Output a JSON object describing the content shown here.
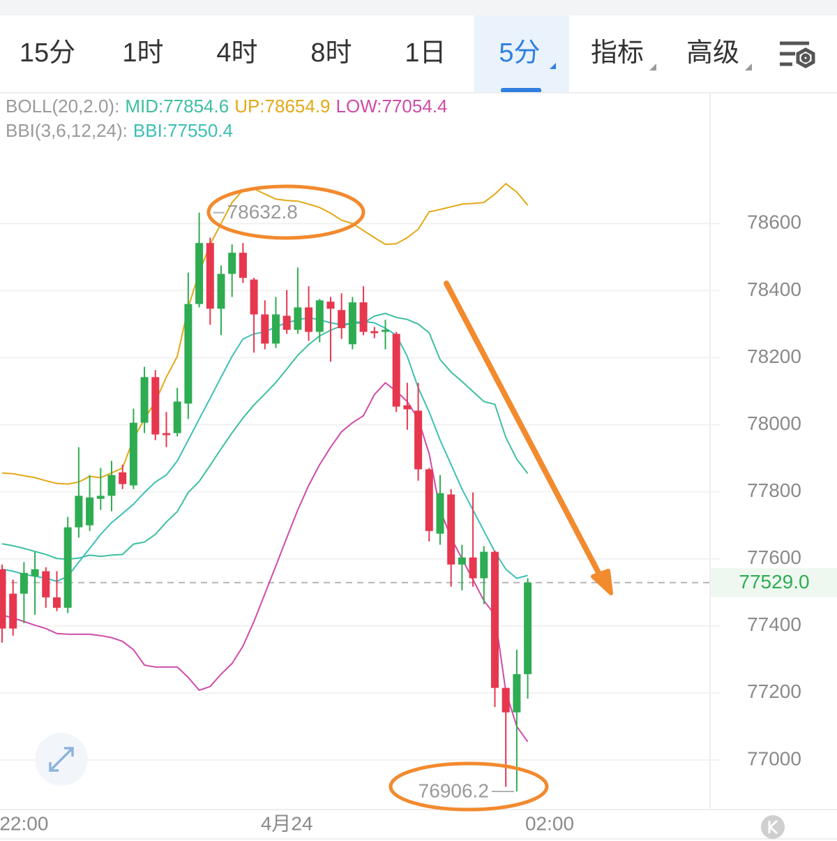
{
  "tabs": [
    "15分",
    "1时",
    "4时",
    "8时",
    "1日",
    "5分",
    "指标",
    "高级"
  ],
  "chart_data": {
    "type": "candlestick",
    "header": [
      [
        {
          "text": "BOLL(20,2.0):",
          "color": "#9a9a9a"
        },
        {
          "text": "MID:77854.6",
          "color": "#3cbf9f"
        },
        {
          "text": "UP:78654.9",
          "color": "#e3a816"
        },
        {
          "text": "LOW:77054.4",
          "color": "#d04aa8"
        }
      ],
      [
        {
          "text": "BBI(3,6,12,24):",
          "color": "#9a9a9a"
        },
        {
          "text": "BBI:77550.4",
          "color": "#3cbfb6"
        }
      ]
    ],
    "ylim": [
      76852,
      78990
    ],
    "yticks": [
      77000,
      77200,
      77400,
      77600,
      77800,
      78000,
      78200,
      78400,
      78600
    ],
    "xlim": [
      -0.19,
      64.65
    ],
    "xticks": [
      {
        "value": 2,
        "label": "22:00"
      },
      {
        "value": 26,
        "label": "4月24"
      },
      {
        "value": 50,
        "label": "02:00"
      }
    ],
    "grid": true,
    "candles": {
      "up_color": "#2eac52",
      "down_color": "#e6374e",
      "open": [
        77569,
        77496,
        77496,
        77548,
        77563,
        77485,
        77454,
        77694,
        77700,
        77779,
        77788,
        77858,
        77819,
        78006,
        78142,
        77975,
        77975,
        78063,
        78360,
        78542,
        78346,
        78450,
        78513,
        78433,
        78329,
        78242,
        78325,
        78283,
        78350,
        78277,
        78367,
        78342,
        78240,
        78365,
        78279,
        78277,
        78271,
        78058,
        78042,
        77867,
        77675,
        77792,
        77583,
        77604,
        77542,
        77621,
        77215,
        77142,
        77256
      ],
      "high": [
        77583,
        77538,
        77590,
        77621,
        77575,
        77563,
        77725,
        77933,
        77850,
        77871,
        77892,
        77881,
        78048,
        78173,
        78163,
        78038,
        78110,
        78454,
        78632.8,
        78558,
        78475,
        78538,
        78542,
        78438,
        78371,
        78381,
        78402,
        78469,
        78413,
        78375,
        78381,
        78392,
        78381,
        78413,
        78292,
        78313,
        78277,
        78125,
        78125,
        77871,
        77850,
        77808,
        77642,
        77798,
        77638,
        77625,
        77215,
        77329,
        77542
      ],
      "low": [
        77350,
        77371,
        77408,
        77433,
        77454,
        77444,
        77438,
        77663,
        77683,
        77746,
        77742,
        77808,
        77808,
        77975,
        77954,
        77933,
        77965,
        78017,
        78350,
        78298,
        78267,
        78381,
        78423,
        78215,
        78225,
        78229,
        78271,
        78271,
        78250,
        78246,
        78188,
        78256,
        78225,
        78267,
        78258,
        78225,
        78038,
        77985,
        77833,
        77652,
        77642,
        77517,
        77506,
        77517,
        77465,
        77158,
        76920,
        76906.2,
        77183
      ],
      "close": [
        77392,
        77392,
        77558,
        77569,
        77485,
        77454,
        77694,
        77788,
        77783,
        77788,
        77850,
        77823,
        78006,
        78142,
        77971,
        77969,
        78069,
        78360,
        78542,
        78346,
        78450,
        78513,
        78438,
        78329,
        78242,
        78329,
        78283,
        78350,
        78277,
        78371,
        78346,
        78288,
        78365,
        78277,
        78273,
        78283,
        78054,
        78046,
        77867,
        77683,
        77796,
        77583,
        77604,
        77542,
        77621,
        77215,
        77142,
        77256,
        77529
      ]
    },
    "indicators": [
      {
        "color": "#e3a816",
        "values": [
          77856,
          77854,
          77848,
          77842,
          77833,
          77825,
          77823,
          77829,
          77846,
          77842,
          77856,
          77871,
          77958,
          78017,
          78069,
          78142,
          78204,
          78350,
          78454,
          78538,
          78600,
          78663,
          78700,
          78704,
          78688,
          78673,
          78669,
          78667,
          78658,
          78648,
          78631,
          78610,
          78600,
          78579,
          78558,
          78538,
          78540,
          78558,
          78583,
          78635,
          78642,
          78650,
          78658,
          78660,
          78663,
          78688,
          78719,
          78694,
          78654.9
        ]
      },
      {
        "color": "#3cbf9f",
        "values": [
          77645,
          77639,
          77631,
          77622,
          77613,
          77601,
          77599,
          77602,
          77611,
          77607,
          77611,
          77613,
          77644,
          77650,
          77673,
          77710,
          77741,
          77798,
          77831,
          77879,
          77928,
          77976,
          78020,
          78059,
          78092,
          78126,
          78166,
          78207,
          78239,
          78265,
          78282,
          78295,
          78303,
          78303,
          78324,
          78332,
          78320,
          78314,
          78300,
          78274,
          78194,
          78157,
          78129,
          78099,
          78069,
          78061,
          77962,
          77897,
          77854.6
        ]
      },
      {
        "color": "#d04aa8",
        "values": [
          77433,
          77423,
          77413,
          77402,
          77392,
          77377,
          77375,
          77375,
          77375,
          77371,
          77365,
          77354,
          77329,
          77283,
          77277,
          77277,
          77277,
          77246,
          77208,
          77219,
          77256,
          77288,
          77340,
          77413,
          77496,
          77579,
          77663,
          77746,
          77819,
          77881,
          77933,
          77979,
          78006,
          78027,
          78090,
          78125,
          78100,
          78069,
          78017,
          77913,
          77746,
          77663,
          77600,
          77538,
          77475,
          77433,
          77204,
          77100,
          77054.4
        ]
      },
      {
        "color": "#3cbfb6",
        "values": [
          77569,
          77563,
          77554,
          77548,
          77542,
          77533,
          77548,
          77590,
          77631,
          77673,
          77708,
          77735,
          77763,
          77798,
          77829,
          77850,
          77892,
          77954,
          78017,
          78079,
          78142,
          78204,
          78256,
          78271,
          78277,
          78292,
          78304,
          78313,
          78319,
          78313,
          78304,
          78298,
          78304,
          78308,
          78304,
          78288,
          78267,
          78204,
          78110,
          78038,
          77954,
          77881,
          77808,
          77746,
          77683,
          77621,
          77569,
          77542,
          77550.4
        ]
      }
    ],
    "high_label": 78632.8,
    "low_label": 76906.2,
    "last_price": {
      "value": 77529,
      "label": "77529.0"
    }
  }
}
